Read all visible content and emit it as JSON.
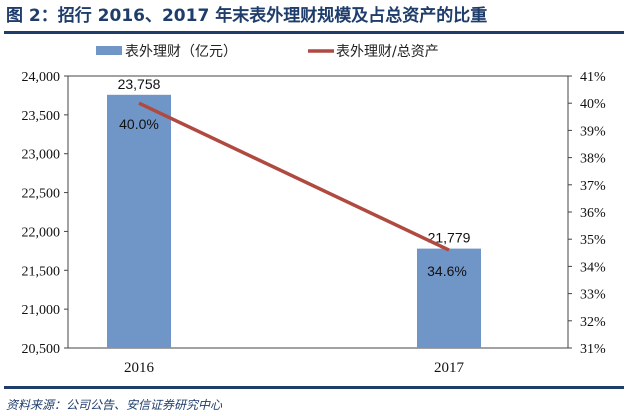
{
  "title": "图 2：招行 2016、2017 年末表外理财规模及占总资产的比重",
  "source": "资料来源：公司公告、安信证券研究中心",
  "chart_data": {
    "type": "bar+line",
    "categories": [
      "2016",
      "2017"
    ],
    "series": [
      {
        "name": "表外理财（亿元）",
        "type": "bar",
        "axis": "left",
        "color": "#7096c8",
        "values": [
          23758,
          21779
        ],
        "labels": [
          "23,758",
          "21,779"
        ]
      },
      {
        "name": "表外理财/总资产",
        "type": "line",
        "axis": "right",
        "color": "#b04a40",
        "values": [
          40.0,
          34.6
        ],
        "labels": [
          "40.0%",
          "34.6%"
        ]
      }
    ],
    "left_axis": {
      "ylim": [
        20500,
        24000
      ],
      "ticks": [
        "20,500",
        "21,000",
        "21,500",
        "22,000",
        "22,500",
        "23,000",
        "23,500",
        "24,000"
      ]
    },
    "right_axis": {
      "ylim": [
        31,
        41
      ],
      "ticks": [
        "31%",
        "32%",
        "33%",
        "34%",
        "35%",
        "36%",
        "37%",
        "38%",
        "39%",
        "40%",
        "41%"
      ]
    },
    "legend": "top"
  }
}
